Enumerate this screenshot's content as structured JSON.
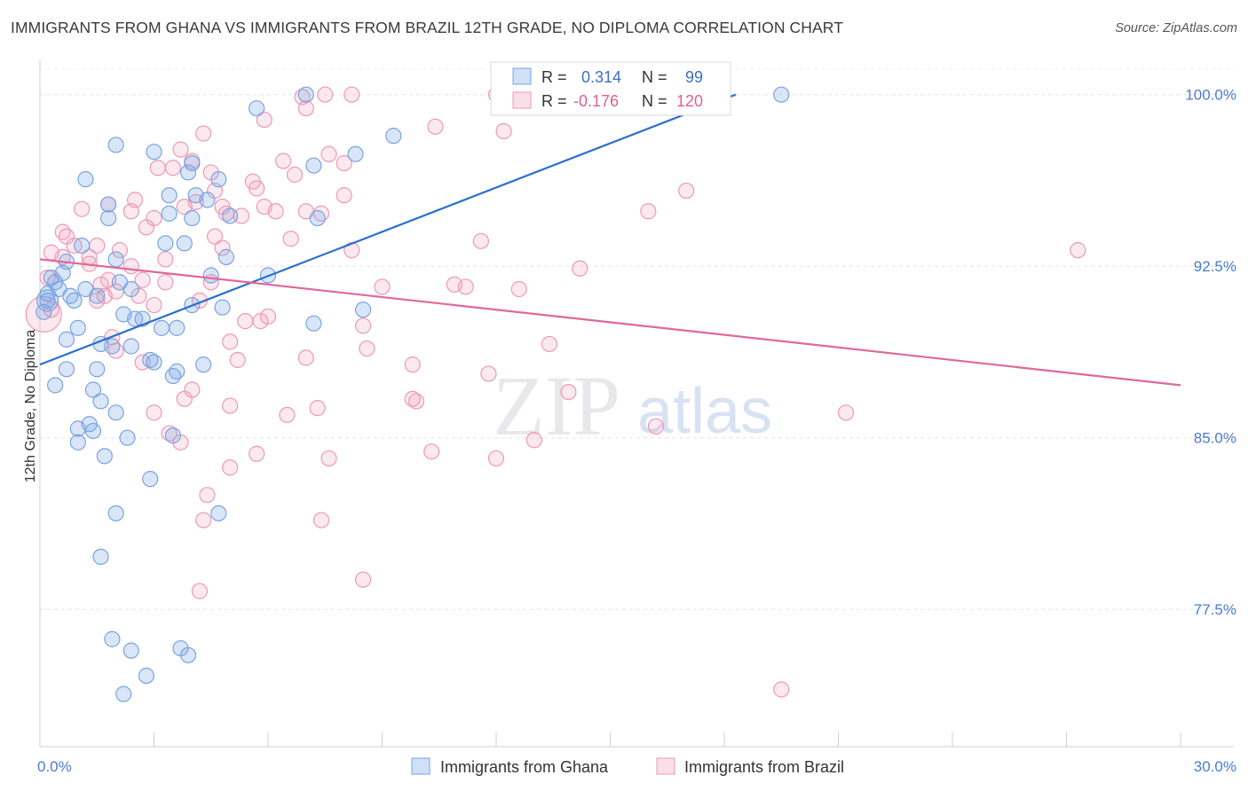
{
  "title": "IMMIGRANTS FROM GHANA VS IMMIGRANTS FROM BRAZIL 12TH GRADE, NO DIPLOMA CORRELATION CHART",
  "source": "Source: ZipAtlas.com",
  "watermark": {
    "zip": "ZIP",
    "atlas": "atlas"
  },
  "colors": {
    "blue_fill": "rgba(120,165,230,0.28)",
    "blue_stroke": "#7aa3e0",
    "blue_line": "#2a6fd1",
    "pink_fill": "rgba(240,150,180,0.22)",
    "pink_stroke": "#eb9ab5",
    "pink_line": "#e0679a",
    "tick_text": "#4b7bd0"
  },
  "stats": {
    "ghana": {
      "r_label": "R =",
      "r_value": "0.314",
      "n_label": "N =",
      "n_value": "99"
    },
    "brazil": {
      "r_label": "R =",
      "r_value": "-0.176",
      "n_label": "N =",
      "n_value": "120"
    }
  },
  "chart_data": {
    "type": "scatter",
    "xlabel": "",
    "ylabel": "12th Grade, No Diploma",
    "xlim": [
      0,
      30
    ],
    "ylim": [
      71.5,
      101.5
    ],
    "x_tick_labels": [
      {
        "v": 0,
        "label": "0.0%"
      },
      {
        "v": 30,
        "label": "30.0%"
      }
    ],
    "y_tick_labels": [
      {
        "v": 100,
        "label": "100.0%"
      },
      {
        "v": 92.5,
        "label": "92.5%"
      },
      {
        "v": 85,
        "label": "85.0%"
      },
      {
        "v": 77.5,
        "label": "77.5%"
      }
    ],
    "legend": [
      "Immigrants from Ghana",
      "Immigrants from Brazil"
    ],
    "series": [
      {
        "name": "Immigrants from Ghana",
        "trend": {
          "x0": 0,
          "y0": 88.2,
          "x1": 18.3,
          "y1": 100.0
        },
        "points": [
          [
            7.0,
            100.0
          ],
          [
            19.5,
            100.0
          ],
          [
            5.7,
            99.4
          ],
          [
            9.3,
            98.2
          ],
          [
            2.0,
            97.8
          ],
          [
            3.0,
            97.5
          ],
          [
            8.3,
            97.4
          ],
          [
            4.0,
            97.0
          ],
          [
            7.2,
            96.9
          ],
          [
            3.9,
            96.6
          ],
          [
            4.7,
            96.3
          ],
          [
            1.2,
            96.3
          ],
          [
            3.4,
            95.6
          ],
          [
            4.4,
            95.4
          ],
          [
            4.1,
            95.6
          ],
          [
            1.8,
            95.2
          ],
          [
            3.4,
            94.8
          ],
          [
            4.0,
            94.6
          ],
          [
            1.8,
            94.6
          ],
          [
            7.3,
            94.6
          ],
          [
            5.0,
            94.7
          ],
          [
            3.3,
            93.5
          ],
          [
            3.8,
            93.5
          ],
          [
            1.1,
            93.4
          ],
          [
            4.9,
            92.9
          ],
          [
            2.0,
            92.8
          ],
          [
            0.7,
            92.7
          ],
          [
            0.6,
            92.2
          ],
          [
            4.5,
            92.1
          ],
          [
            6.0,
            92.1
          ],
          [
            0.3,
            92.0
          ],
          [
            0.4,
            91.8
          ],
          [
            2.1,
            91.8
          ],
          [
            0.5,
            91.5
          ],
          [
            1.2,
            91.5
          ],
          [
            2.4,
            91.5
          ],
          [
            0.2,
            91.3
          ],
          [
            1.5,
            91.2
          ],
          [
            0.8,
            91.2
          ],
          [
            0.2,
            91.0
          ],
          [
            0.9,
            91.0
          ],
          [
            4.0,
            90.8
          ],
          [
            4.8,
            90.7
          ],
          [
            8.5,
            90.6
          ],
          [
            0.1,
            90.5
          ],
          [
            2.2,
            90.4
          ],
          [
            2.5,
            90.2
          ],
          [
            2.7,
            90.2
          ],
          [
            7.2,
            90.0
          ],
          [
            1.0,
            89.8
          ],
          [
            3.2,
            89.8
          ],
          [
            3.6,
            89.8
          ],
          [
            0.7,
            89.3
          ],
          [
            1.6,
            89.1
          ],
          [
            2.4,
            89.0
          ],
          [
            1.9,
            89.0
          ],
          [
            2.9,
            88.4
          ],
          [
            3.0,
            88.3
          ],
          [
            4.3,
            88.2
          ],
          [
            0.7,
            88.0
          ],
          [
            1.5,
            88.0
          ],
          [
            3.5,
            87.7
          ],
          [
            3.6,
            87.9
          ],
          [
            0.4,
            87.3
          ],
          [
            1.4,
            87.1
          ],
          [
            1.6,
            86.6
          ],
          [
            2.0,
            86.1
          ],
          [
            1.3,
            85.6
          ],
          [
            1.0,
            85.4
          ],
          [
            1.4,
            85.3
          ],
          [
            3.5,
            85.1
          ],
          [
            2.3,
            85.0
          ],
          [
            1.0,
            84.8
          ],
          [
            1.7,
            84.2
          ],
          [
            2.9,
            83.2
          ],
          [
            2.0,
            81.7
          ],
          [
            4.7,
            81.7
          ],
          [
            1.6,
            79.8
          ],
          [
            1.9,
            76.2
          ],
          [
            2.4,
            75.7
          ],
          [
            3.7,
            75.8
          ],
          [
            3.9,
            75.5
          ],
          [
            2.8,
            74.6
          ],
          [
            2.2,
            73.8
          ]
        ]
      },
      {
        "name": "Immigrants from Brazil",
        "trend": {
          "x0": 0,
          "y0": 92.8,
          "x1": 30,
          "y1": 87.3
        },
        "points": [
          [
            7.5,
            100.0
          ],
          [
            8.2,
            100.0
          ],
          [
            12.0,
            100.0
          ],
          [
            16.1,
            100.0
          ],
          [
            6.9,
            99.9
          ],
          [
            7.0,
            99.4
          ],
          [
            5.9,
            98.9
          ],
          [
            10.4,
            98.6
          ],
          [
            12.2,
            98.4
          ],
          [
            4.3,
            98.3
          ],
          [
            3.7,
            97.6
          ],
          [
            7.6,
            97.4
          ],
          [
            4.0,
            97.1
          ],
          [
            6.4,
            97.1
          ],
          [
            8.0,
            97.0
          ],
          [
            3.1,
            96.8
          ],
          [
            3.5,
            96.8
          ],
          [
            4.5,
            96.6
          ],
          [
            6.7,
            96.5
          ],
          [
            5.6,
            96.2
          ],
          [
            5.7,
            95.9
          ],
          [
            4.6,
            95.8
          ],
          [
            17.0,
            95.8
          ],
          [
            8.0,
            95.6
          ],
          [
            2.5,
            95.4
          ],
          [
            4.1,
            95.3
          ],
          [
            1.8,
            95.2
          ],
          [
            3.8,
            95.1
          ],
          [
            5.9,
            95.1
          ],
          [
            4.8,
            95.1
          ],
          [
            1.1,
            95.0
          ],
          [
            2.4,
            94.9
          ],
          [
            6.2,
            94.9
          ],
          [
            7.0,
            94.9
          ],
          [
            16.0,
            94.9
          ],
          [
            4.9,
            94.8
          ],
          [
            7.4,
            94.8
          ],
          [
            5.3,
            94.7
          ],
          [
            3.0,
            94.6
          ],
          [
            2.8,
            94.2
          ],
          [
            0.6,
            94.0
          ],
          [
            0.7,
            93.8
          ],
          [
            4.6,
            93.8
          ],
          [
            6.6,
            93.7
          ],
          [
            11.6,
            93.6
          ],
          [
            0.9,
            93.4
          ],
          [
            1.5,
            93.4
          ],
          [
            4.8,
            93.3
          ],
          [
            2.1,
            93.2
          ],
          [
            8.2,
            93.2
          ],
          [
            27.3,
            93.2
          ],
          [
            0.3,
            93.1
          ],
          [
            0.6,
            92.9
          ],
          [
            1.3,
            92.9
          ],
          [
            3.3,
            92.8
          ],
          [
            1.3,
            92.6
          ],
          [
            2.4,
            92.5
          ],
          [
            14.2,
            92.4
          ],
          [
            0.2,
            92.0
          ],
          [
            1.8,
            91.9
          ],
          [
            2.7,
            91.9
          ],
          [
            3.3,
            91.8
          ],
          [
            4.5,
            91.8
          ],
          [
            1.6,
            91.7
          ],
          [
            10.9,
            91.7
          ],
          [
            11.2,
            91.6
          ],
          [
            9.0,
            91.6
          ],
          [
            12.6,
            91.5
          ],
          [
            2.0,
            91.4
          ],
          [
            1.7,
            91.2
          ],
          [
            2.6,
            91.2
          ],
          [
            1.5,
            91.0
          ],
          [
            4.2,
            91.0
          ],
          [
            3.0,
            90.8
          ],
          [
            0.3,
            90.6
          ],
          [
            6.0,
            90.3
          ],
          [
            5.4,
            90.1
          ],
          [
            5.8,
            90.1
          ],
          [
            8.5,
            89.9
          ],
          [
            1.9,
            89.4
          ],
          [
            5.0,
            89.2
          ],
          [
            13.4,
            89.1
          ],
          [
            8.6,
            88.9
          ],
          [
            2.0,
            88.8
          ],
          [
            7.0,
            88.5
          ],
          [
            5.2,
            88.4
          ],
          [
            2.7,
            88.3
          ],
          [
            9.8,
            88.2
          ],
          [
            11.8,
            87.8
          ],
          [
            4.0,
            87.1
          ],
          [
            13.9,
            87.0
          ],
          [
            3.8,
            86.7
          ],
          [
            9.8,
            86.7
          ],
          [
            9.9,
            86.6
          ],
          [
            5.0,
            86.4
          ],
          [
            7.3,
            86.3
          ],
          [
            3.0,
            86.1
          ],
          [
            6.5,
            86.0
          ],
          [
            21.2,
            86.1
          ],
          [
            16.2,
            85.5
          ],
          [
            3.4,
            85.2
          ],
          [
            13.0,
            84.9
          ],
          [
            3.7,
            84.8
          ],
          [
            10.3,
            84.4
          ],
          [
            5.7,
            84.3
          ],
          [
            12.0,
            84.1
          ],
          [
            7.6,
            84.1
          ],
          [
            5.0,
            83.7
          ],
          [
            4.4,
            82.5
          ],
          [
            7.4,
            81.4
          ],
          [
            4.3,
            81.4
          ],
          [
            8.5,
            78.8
          ],
          [
            4.2,
            78.3
          ],
          [
            19.5,
            74.0
          ]
        ]
      }
    ]
  }
}
